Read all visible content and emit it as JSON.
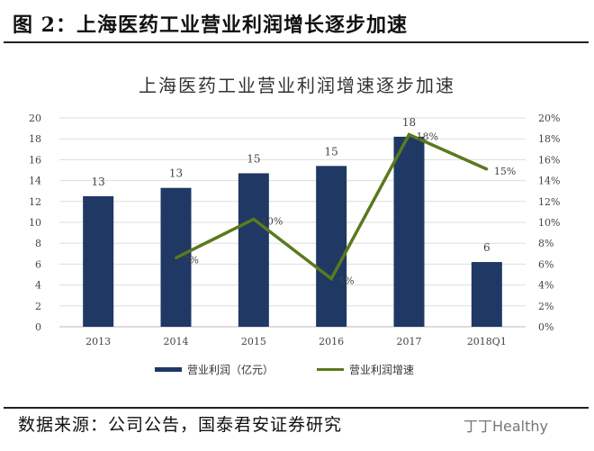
{
  "figure_title": "图 2：上海医药工业营业利润增长逐步加速",
  "source": "数据来源：公司公告，国泰君安证券研究",
  "watermark": "丁丁Healthy",
  "chart_data": {
    "type": "bar+line",
    "title": "上海医药工业营业利润增速逐步加速",
    "categories": [
      "2013",
      "2014",
      "2015",
      "2016",
      "2017",
      "2018Q1"
    ],
    "series": [
      {
        "name": "营业利润（亿元）",
        "type": "bar",
        "axis": "left",
        "color": "#1f3864",
        "values": [
          12.5,
          13.3,
          14.7,
          15.4,
          18.2,
          6.2
        ],
        "labels": [
          "13",
          "13",
          "15",
          "15",
          "18",
          "6"
        ]
      },
      {
        "name": "营业利润增速",
        "type": "line",
        "axis": "right",
        "color": "#5a7a1e",
        "values": [
          null,
          6.6,
          10.3,
          4.6,
          18.4,
          15.1
        ],
        "labels": [
          "",
          "7%",
          "10%",
          "5%",
          "18%",
          "15%"
        ]
      }
    ],
    "y_left": {
      "range": [
        0,
        20
      ],
      "ticks": [
        "0",
        "2",
        "4",
        "6",
        "8",
        "10",
        "12",
        "14",
        "16",
        "18",
        "20"
      ]
    },
    "y_right": {
      "range": [
        0,
        20
      ],
      "ticks": [
        "0%",
        "2%",
        "4%",
        "6%",
        "8%",
        "10%",
        "12%",
        "14%",
        "16%",
        "18%",
        "20%"
      ]
    },
    "grid": true,
    "legend": "bottom"
  }
}
